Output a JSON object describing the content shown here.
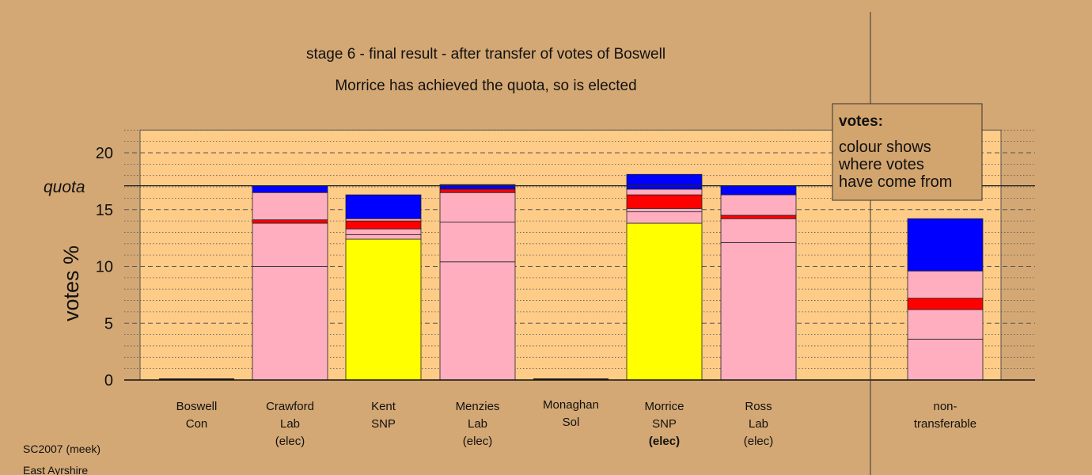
{
  "chart_data": {
    "type": "bar",
    "stacked": true,
    "title": "stage 6 - final result - after transfer of votes of Boswell",
    "subtitle": "Morrice has achieved the quota, so is elected",
    "ylabel": "votes %",
    "ylim": [
      0,
      22
    ],
    "yticks": [
      0,
      5,
      10,
      15,
      20
    ],
    "quota": 17.1,
    "quota_label": "quota",
    "grid": true,
    "colors": {
      "background": "#D4A874",
      "plot_area": "#FFCC88",
      "pink": "#FFAEC0",
      "yellow": "#FFFF00",
      "red": "#FF0000",
      "blue": "#0000FF",
      "legend_box": "#D2A46E"
    },
    "candidates": [
      {
        "name": "Boswell",
        "party": "Con",
        "status": "",
        "segments": []
      },
      {
        "name": "Crawford",
        "party": "Lab",
        "status": "(elec)",
        "segments": [
          {
            "color": "pink",
            "value": 10.0
          },
          {
            "color": "pink",
            "value": 3.8
          },
          {
            "color": "red",
            "value": 0.3
          },
          {
            "color": "pink",
            "value": 2.4
          },
          {
            "color": "blue",
            "value": 0.6
          }
        ]
      },
      {
        "name": "Kent",
        "party": "SNP",
        "status": "",
        "segments": [
          {
            "color": "yellow",
            "value": 12.4
          },
          {
            "color": "pink",
            "value": 0.4
          },
          {
            "color": "pink",
            "value": 0.5
          },
          {
            "color": "red",
            "value": 0.7
          },
          {
            "color": "pink",
            "value": 0.2
          },
          {
            "color": "blue",
            "value": 2.1
          }
        ]
      },
      {
        "name": "Menzies",
        "party": "Lab",
        "status": "(elec)",
        "segments": [
          {
            "color": "pink",
            "value": 10.4
          },
          {
            "color": "pink",
            "value": 3.5
          },
          {
            "color": "pink",
            "value": 2.6
          },
          {
            "color": "red",
            "value": 0.3
          },
          {
            "color": "blue",
            "value": 0.4
          }
        ]
      },
      {
        "name": "Monaghan",
        "party": "Sol",
        "status": "",
        "segments": []
      },
      {
        "name": "Morrice",
        "party": "SNP",
        "status": "(elec)",
        "status_bold": true,
        "segments": [
          {
            "color": "yellow",
            "value": 13.8
          },
          {
            "color": "pink",
            "value": 1.0
          },
          {
            "color": "pink",
            "value": 0.3
          },
          {
            "color": "red",
            "value": 1.2
          },
          {
            "color": "pink",
            "value": 0.5
          },
          {
            "color": "blue",
            "value": 1.3
          }
        ]
      },
      {
        "name": "Ross",
        "party": "Lab",
        "status": "(elec)",
        "segments": [
          {
            "color": "pink",
            "value": 12.1
          },
          {
            "color": "pink",
            "value": 2.1
          },
          {
            "color": "red",
            "value": 0.3
          },
          {
            "color": "pink",
            "value": 1.8
          },
          {
            "color": "blue",
            "value": 0.8
          }
        ]
      }
    ],
    "nontransferable": {
      "label_line1": "non-",
      "label_line2": "transferable",
      "segments": [
        {
          "color": "pink",
          "value": 3.6
        },
        {
          "color": "pink",
          "value": 2.6
        },
        {
          "color": "red",
          "value": 1.0
        },
        {
          "color": "pink",
          "value": 2.4
        },
        {
          "color": "blue",
          "value": 4.6
        }
      ]
    },
    "legend": {
      "title": "votes:",
      "lines": [
        "colour shows",
        "where votes",
        "have come from"
      ]
    }
  },
  "footer": {
    "line1": "SC2007 (meek)",
    "line2": "East Ayrshire"
  }
}
